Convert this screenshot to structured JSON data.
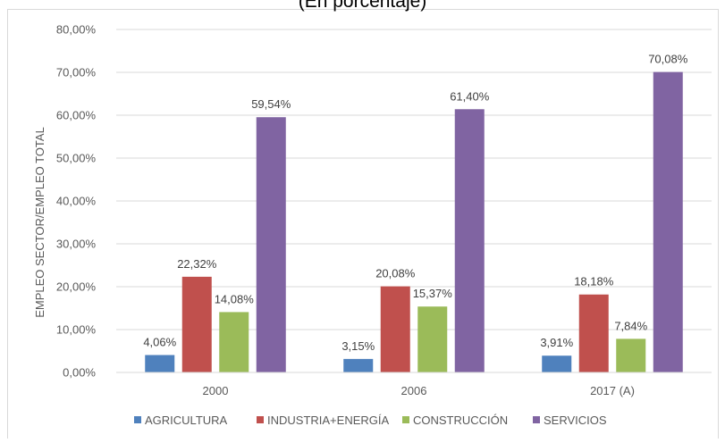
{
  "subtitle": "(En porcentaje)",
  "chart_data": {
    "type": "bar",
    "title": "",
    "subtitle": "(En porcentaje)",
    "ylabel": "EMPLEO SECTOR/EMPLEO TOTAL",
    "xlabel": "",
    "categories": [
      "2000",
      "2006",
      "2017 (A)"
    ],
    "ylim": [
      0,
      80
    ],
    "yticks": [
      "0,00%",
      "10,00%",
      "20,00%",
      "30,00%",
      "40,00%",
      "50,00%",
      "60,00%",
      "70,00%",
      "80,00%"
    ],
    "grid": true,
    "legend_position": "bottom",
    "series": [
      {
        "name": "AGRICULTURA",
        "color": "#4F81BD",
        "values": [
          4.06,
          3.15,
          3.91
        ],
        "labels": [
          "4,06%",
          "3,15%",
          "3,91%"
        ]
      },
      {
        "name": "INDUSTRIA+ENERGÍA",
        "color": "#C0504D",
        "values": [
          22.32,
          20.08,
          18.18
        ],
        "labels": [
          "22,32%",
          "20,08%",
          "18,18%"
        ]
      },
      {
        "name": "CONSTRUCCIÓN",
        "color": "#9BBB59",
        "values": [
          14.08,
          15.37,
          7.84
        ],
        "labels": [
          "14,08%",
          "15,37%",
          "7,84%"
        ]
      },
      {
        "name": "SERVICIOS",
        "color": "#8064A2",
        "values": [
          59.54,
          61.4,
          70.08
        ],
        "labels": [
          "59,54%",
          "61,40%",
          "70,08%"
        ]
      }
    ]
  }
}
